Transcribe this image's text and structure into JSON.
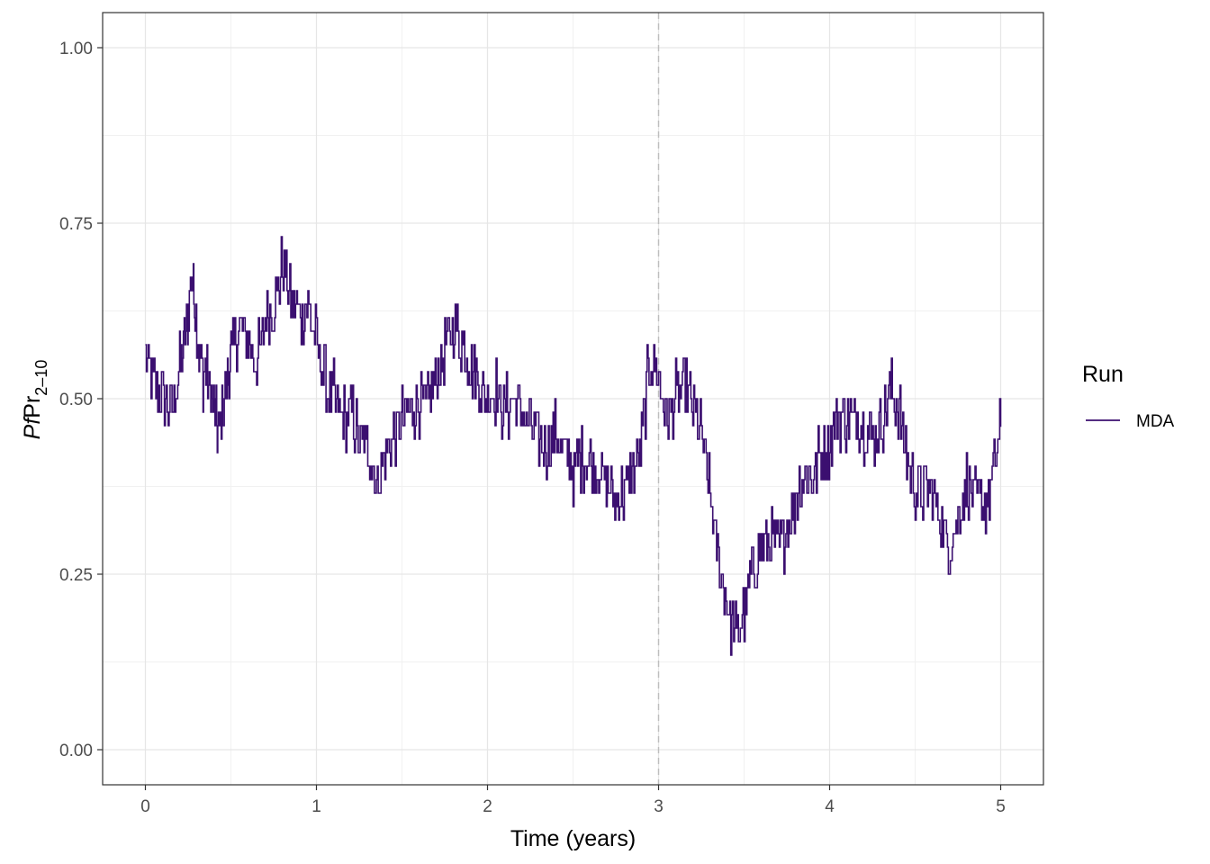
{
  "chart_data": {
    "type": "line",
    "xlabel": "Time (years)",
    "ylabel": {
      "italic": "Pf",
      "main": "Pr",
      "subscript": "2–10"
    },
    "xlim": [
      -0.25,
      5.25
    ],
    "ylim": [
      -0.05,
      1.05
    ],
    "x_ticks": [
      0,
      1,
      2,
      3,
      4,
      5
    ],
    "x_tick_labels": [
      "0",
      "1",
      "2",
      "3",
      "4",
      "5"
    ],
    "y_ticks": [
      0,
      0.25,
      0.5,
      0.75,
      1.0
    ],
    "y_tick_labels": [
      "0.00",
      "0.25",
      "0.50",
      "0.75",
      "1.00"
    ],
    "grid": true,
    "reference_line": {
      "x": 3,
      "style": "dashed",
      "color": "#bdbdbd"
    },
    "legend": {
      "title": "Run",
      "position": "right"
    },
    "series": [
      {
        "name": "MDA",
        "color": "#3b0f70",
        "step": true,
        "noise": [
          0.03,
          0.05
        ],
        "points": [
          [
            0.0,
            0.56
          ],
          [
            0.05,
            0.52
          ],
          [
            0.1,
            0.5
          ],
          [
            0.15,
            0.48
          ],
          [
            0.2,
            0.54
          ],
          [
            0.24,
            0.6
          ],
          [
            0.27,
            0.69
          ],
          [
            0.3,
            0.6
          ],
          [
            0.33,
            0.54
          ],
          [
            0.36,
            0.53
          ],
          [
            0.4,
            0.49
          ],
          [
            0.43,
            0.45
          ],
          [
            0.47,
            0.52
          ],
          [
            0.5,
            0.56
          ],
          [
            0.55,
            0.6
          ],
          [
            0.6,
            0.58
          ],
          [
            0.65,
            0.55
          ],
          [
            0.7,
            0.61
          ],
          [
            0.75,
            0.63
          ],
          [
            0.8,
            0.69
          ],
          [
            0.85,
            0.64
          ],
          [
            0.9,
            0.62
          ],
          [
            0.95,
            0.63
          ],
          [
            1.0,
            0.58
          ],
          [
            1.05,
            0.52
          ],
          [
            1.1,
            0.5
          ],
          [
            1.15,
            0.47
          ],
          [
            1.2,
            0.48
          ],
          [
            1.25,
            0.44
          ],
          [
            1.3,
            0.43
          ],
          [
            1.35,
            0.38
          ],
          [
            1.4,
            0.42
          ],
          [
            1.45,
            0.45
          ],
          [
            1.5,
            0.47
          ],
          [
            1.55,
            0.48
          ],
          [
            1.6,
            0.5
          ],
          [
            1.65,
            0.49
          ],
          [
            1.7,
            0.53
          ],
          [
            1.75,
            0.57
          ],
          [
            1.8,
            0.6
          ],
          [
            1.85,
            0.58
          ],
          [
            1.9,
            0.55
          ],
          [
            1.95,
            0.52
          ],
          [
            2.0,
            0.5
          ],
          [
            2.05,
            0.51
          ],
          [
            2.1,
            0.48
          ],
          [
            2.15,
            0.5
          ],
          [
            2.2,
            0.48
          ],
          [
            2.25,
            0.46
          ],
          [
            2.3,
            0.44
          ],
          [
            2.35,
            0.43
          ],
          [
            2.4,
            0.45
          ],
          [
            2.45,
            0.42
          ],
          [
            2.5,
            0.4
          ],
          [
            2.55,
            0.42
          ],
          [
            2.6,
            0.41
          ],
          [
            2.65,
            0.4
          ],
          [
            2.7,
            0.38
          ],
          [
            2.75,
            0.35
          ],
          [
            2.8,
            0.37
          ],
          [
            2.85,
            0.39
          ],
          [
            2.9,
            0.44
          ],
          [
            2.95,
            0.56
          ],
          [
            3.0,
            0.53
          ],
          [
            3.05,
            0.47
          ],
          [
            3.1,
            0.5
          ],
          [
            3.15,
            0.52
          ],
          [
            3.2,
            0.49
          ],
          [
            3.25,
            0.45
          ],
          [
            3.3,
            0.36
          ],
          [
            3.35,
            0.26
          ],
          [
            3.4,
            0.21
          ],
          [
            3.45,
            0.16
          ],
          [
            3.5,
            0.2
          ],
          [
            3.55,
            0.25
          ],
          [
            3.6,
            0.29
          ],
          [
            3.65,
            0.3
          ],
          [
            3.7,
            0.28
          ],
          [
            3.75,
            0.32
          ],
          [
            3.8,
            0.36
          ],
          [
            3.85,
            0.39
          ],
          [
            3.9,
            0.39
          ],
          [
            3.95,
            0.43
          ],
          [
            4.0,
            0.44
          ],
          [
            4.05,
            0.48
          ],
          [
            4.1,
            0.47
          ],
          [
            4.15,
            0.47
          ],
          [
            4.2,
            0.46
          ],
          [
            4.25,
            0.45
          ],
          [
            4.3,
            0.46
          ],
          [
            4.35,
            0.51
          ],
          [
            4.4,
            0.49
          ],
          [
            4.45,
            0.42
          ],
          [
            4.5,
            0.37
          ],
          [
            4.55,
            0.37
          ],
          [
            4.6,
            0.37
          ],
          [
            4.65,
            0.33
          ],
          [
            4.7,
            0.29
          ],
          [
            4.75,
            0.33
          ],
          [
            4.8,
            0.38
          ],
          [
            4.85,
            0.36
          ],
          [
            4.9,
            0.35
          ],
          [
            4.95,
            0.38
          ],
          [
            5.0,
            0.46
          ]
        ]
      }
    ]
  }
}
